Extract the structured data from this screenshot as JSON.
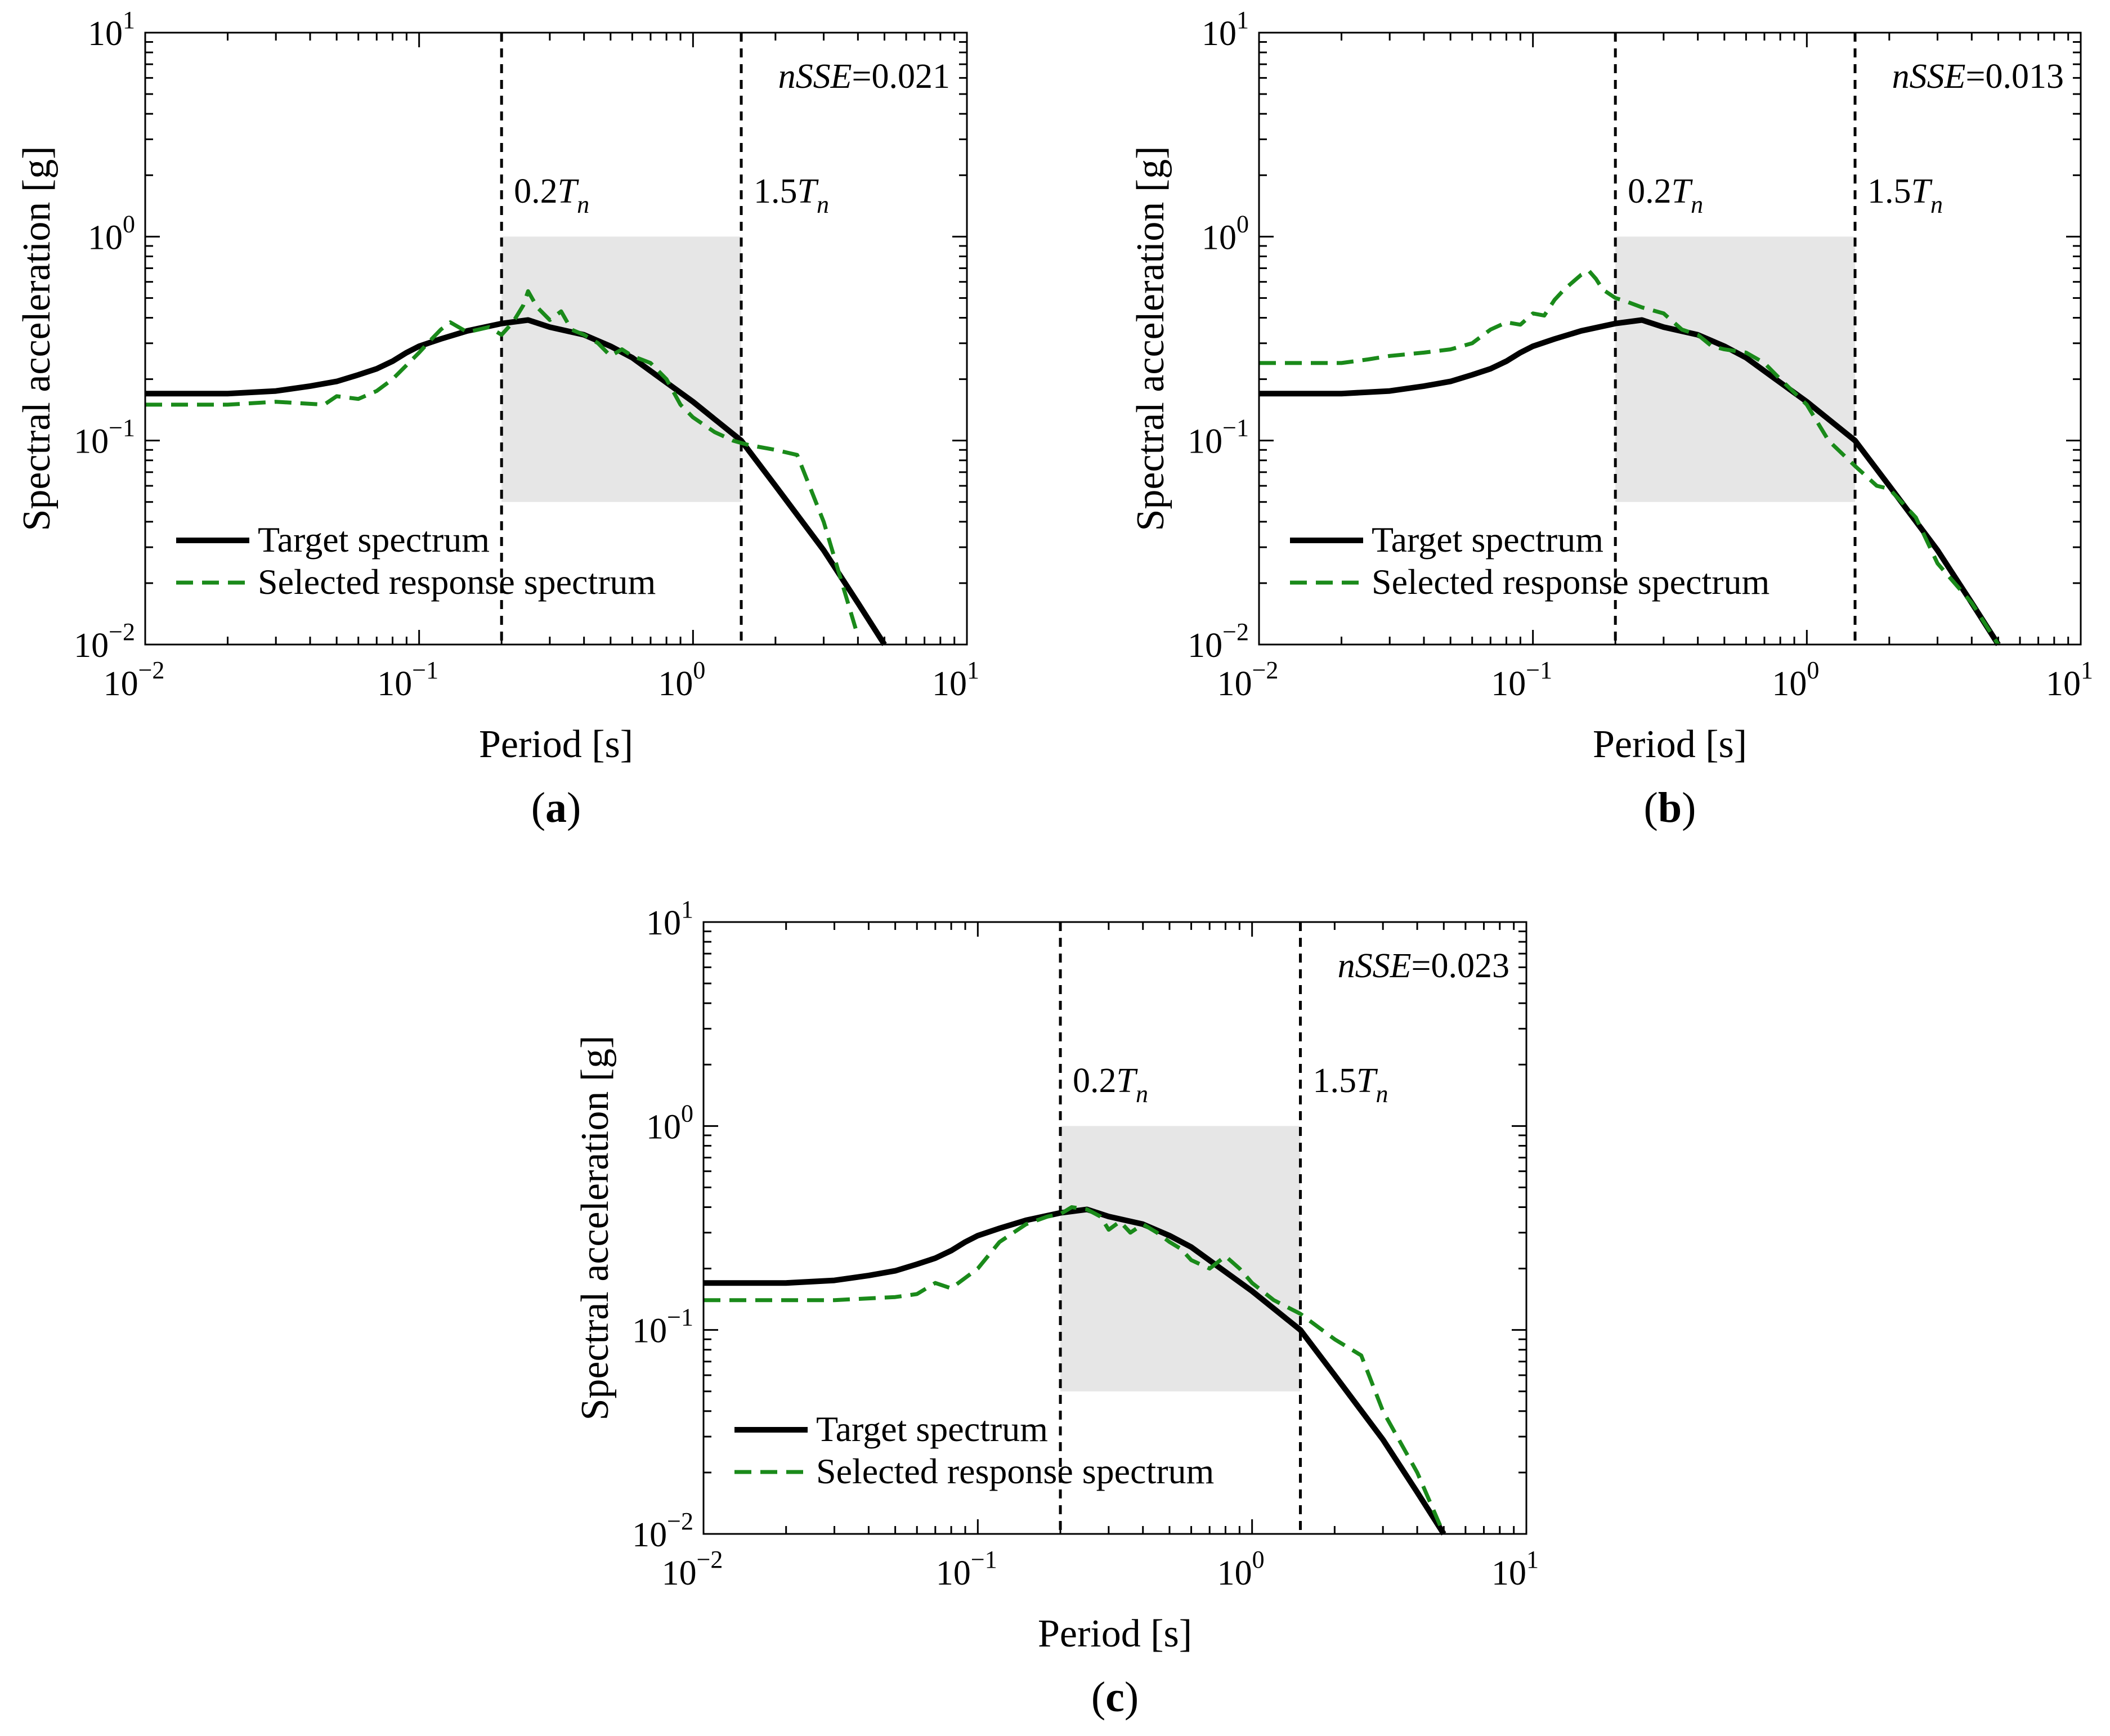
{
  "figure": {
    "colors": {
      "target": "#000000",
      "selected": "#1a8a1a",
      "band": "#e6e6e6",
      "frame": "#000000"
    }
  },
  "chart_data": [
    {
      "type": "line",
      "panel": "a",
      "caption_prefix": "(",
      "caption_letter": "a",
      "caption_suffix": ")",
      "xlabel": "Period [s]",
      "ylabel": "Spectral acceleration [g]",
      "xscale": "log",
      "yscale": "log",
      "xlim": [
        0.01,
        10
      ],
      "ylim": [
        0.01,
        10
      ],
      "x_ticks": [
        {
          "base": "10",
          "exp": "−2"
        },
        {
          "base": "10",
          "exp": "−1"
        },
        {
          "base": "10",
          "exp": "0"
        },
        {
          "base": "10",
          "exp": "1"
        }
      ],
      "y_ticks": [
        {
          "base": "10",
          "exp": "−2"
        },
        {
          "base": "10",
          "exp": "−1"
        },
        {
          "base": "10",
          "exp": "0"
        },
        {
          "base": "10",
          "exp": "1"
        }
      ],
      "metric": {
        "name": "nSSE",
        "eq": "=",
        "value": "0.021"
      },
      "vlines": [
        {
          "x": 0.2,
          "label_pre": "0.2",
          "label_T": "T",
          "label_sub": "n"
        },
        {
          "x": 1.5,
          "label_pre": "1.5",
          "label_T": "T",
          "label_sub": "n"
        }
      ],
      "band": {
        "x": [
          0.2,
          1.5
        ],
        "y": [
          0.05,
          1.0
        ]
      },
      "legend": [
        "Target spectrum",
        "Selected response spectrum"
      ],
      "series": [
        {
          "name": "Target spectrum",
          "x": [
            0.01,
            0.02,
            0.03,
            0.04,
            0.05,
            0.06,
            0.07,
            0.08,
            0.09,
            0.1,
            0.12,
            0.15,
            0.2,
            0.25,
            0.3,
            0.4,
            0.5,
            0.6,
            0.75,
            1.0,
            1.5,
            2.0,
            3.0,
            4.0,
            5.0
          ],
          "y": [
            0.17,
            0.17,
            0.175,
            0.185,
            0.195,
            0.21,
            0.225,
            0.245,
            0.27,
            0.29,
            0.315,
            0.345,
            0.375,
            0.39,
            0.36,
            0.33,
            0.29,
            0.255,
            0.205,
            0.155,
            0.1,
            0.06,
            0.029,
            0.016,
            0.01
          ]
        },
        {
          "name": "Selected response spectrum",
          "x": [
            0.01,
            0.02,
            0.03,
            0.045,
            0.05,
            0.06,
            0.07,
            0.08,
            0.1,
            0.11,
            0.12,
            0.13,
            0.15,
            0.18,
            0.2,
            0.22,
            0.24,
            0.25,
            0.27,
            0.3,
            0.33,
            0.36,
            0.4,
            0.45,
            0.5,
            0.55,
            0.6,
            0.7,
            0.8,
            0.9,
            1.0,
            1.2,
            1.4,
            1.6,
            2.0,
            2.4,
            3.0,
            3.5,
            4.0
          ],
          "y": [
            0.15,
            0.15,
            0.155,
            0.15,
            0.165,
            0.16,
            0.175,
            0.2,
            0.27,
            0.31,
            0.35,
            0.38,
            0.34,
            0.36,
            0.33,
            0.38,
            0.46,
            0.54,
            0.45,
            0.39,
            0.43,
            0.35,
            0.33,
            0.3,
            0.26,
            0.28,
            0.26,
            0.24,
            0.2,
            0.15,
            0.13,
            0.11,
            0.1,
            0.095,
            0.09,
            0.085,
            0.04,
            0.02,
            0.011
          ]
        }
      ]
    },
    {
      "type": "line",
      "panel": "b",
      "caption_prefix": "(",
      "caption_letter": "b",
      "caption_suffix": ")",
      "xlabel": "Period [s]",
      "ylabel": "Spectral acceleration [g]",
      "xscale": "log",
      "yscale": "log",
      "xlim": [
        0.01,
        10
      ],
      "ylim": [
        0.01,
        10
      ],
      "x_ticks": [
        {
          "base": "10",
          "exp": "−2"
        },
        {
          "base": "10",
          "exp": "−1"
        },
        {
          "base": "10",
          "exp": "0"
        },
        {
          "base": "10",
          "exp": "1"
        }
      ],
      "y_ticks": [
        {
          "base": "10",
          "exp": "−2"
        },
        {
          "base": "10",
          "exp": "−1"
        },
        {
          "base": "10",
          "exp": "0"
        },
        {
          "base": "10",
          "exp": "1"
        }
      ],
      "metric": {
        "name": "nSSE",
        "eq": "=",
        "value": "0.013"
      },
      "vlines": [
        {
          "x": 0.2,
          "label_pre": "0.2",
          "label_T": "T",
          "label_sub": "n"
        },
        {
          "x": 1.5,
          "label_pre": "1.5",
          "label_T": "T",
          "label_sub": "n"
        }
      ],
      "band": {
        "x": [
          0.2,
          1.5
        ],
        "y": [
          0.05,
          1.0
        ]
      },
      "legend": [
        "Target spectrum",
        "Selected response spectrum"
      ],
      "series": [
        {
          "name": "Target spectrum",
          "x": [
            0.01,
            0.02,
            0.03,
            0.04,
            0.05,
            0.06,
            0.07,
            0.08,
            0.09,
            0.1,
            0.12,
            0.15,
            0.2,
            0.25,
            0.3,
            0.4,
            0.5,
            0.6,
            0.75,
            1.0,
            1.5,
            2.0,
            3.0,
            4.0,
            5.0
          ],
          "y": [
            0.17,
            0.17,
            0.175,
            0.185,
            0.195,
            0.21,
            0.225,
            0.245,
            0.27,
            0.29,
            0.315,
            0.345,
            0.375,
            0.39,
            0.36,
            0.33,
            0.29,
            0.255,
            0.205,
            0.155,
            0.1,
            0.06,
            0.029,
            0.016,
            0.01
          ]
        },
        {
          "name": "Selected response spectrum",
          "x": [
            0.01,
            0.02,
            0.025,
            0.03,
            0.04,
            0.05,
            0.06,
            0.07,
            0.08,
            0.09,
            0.1,
            0.11,
            0.12,
            0.13,
            0.14,
            0.15,
            0.16,
            0.17,
            0.18,
            0.2,
            0.22,
            0.25,
            0.3,
            0.35,
            0.4,
            0.45,
            0.5,
            0.6,
            0.7,
            0.8,
            1.0,
            1.2,
            1.5,
            1.8,
            2.0,
            2.5,
            3.0,
            4.0,
            5.0
          ],
          "y": [
            0.24,
            0.24,
            0.25,
            0.26,
            0.27,
            0.28,
            0.3,
            0.35,
            0.38,
            0.37,
            0.42,
            0.41,
            0.49,
            0.55,
            0.6,
            0.65,
            0.68,
            0.62,
            0.55,
            0.5,
            0.48,
            0.45,
            0.42,
            0.35,
            0.33,
            0.29,
            0.28,
            0.27,
            0.24,
            0.2,
            0.15,
            0.1,
            0.075,
            0.06,
            0.058,
            0.042,
            0.025,
            0.016,
            0.01
          ]
        }
      ]
    },
    {
      "type": "line",
      "panel": "c",
      "caption_prefix": "(",
      "caption_letter": "c",
      "caption_suffix": ")",
      "xlabel": "Period [s]",
      "ylabel": "Spectral acceleration [g]",
      "xscale": "log",
      "yscale": "log",
      "xlim": [
        0.01,
        10
      ],
      "ylim": [
        0.01,
        10
      ],
      "x_ticks": [
        {
          "base": "10",
          "exp": "−2"
        },
        {
          "base": "10",
          "exp": "−1"
        },
        {
          "base": "10",
          "exp": "0"
        },
        {
          "base": "10",
          "exp": "1"
        }
      ],
      "y_ticks": [
        {
          "base": "10",
          "exp": "−2"
        },
        {
          "base": "10",
          "exp": "−1"
        },
        {
          "base": "10",
          "exp": "0"
        },
        {
          "base": "10",
          "exp": "1"
        }
      ],
      "metric": {
        "name": "nSSE",
        "eq": "=",
        "value": "0.023"
      },
      "vlines": [
        {
          "x": 0.2,
          "label_pre": "0.2",
          "label_T": "T",
          "label_sub": "n"
        },
        {
          "x": 1.5,
          "label_pre": "1.5",
          "label_T": "T",
          "label_sub": "n"
        }
      ],
      "band": {
        "x": [
          0.2,
          1.5
        ],
        "y": [
          0.05,
          1.0
        ]
      },
      "legend": [
        "Target spectrum",
        "Selected response spectrum"
      ],
      "series": [
        {
          "name": "Target spectrum",
          "x": [
            0.01,
            0.02,
            0.03,
            0.04,
            0.05,
            0.06,
            0.07,
            0.08,
            0.09,
            0.1,
            0.12,
            0.15,
            0.2,
            0.25,
            0.3,
            0.4,
            0.5,
            0.6,
            0.75,
            1.0,
            1.5,
            2.0,
            3.0,
            4.0,
            5.0
          ],
          "y": [
            0.17,
            0.17,
            0.175,
            0.185,
            0.195,
            0.21,
            0.225,
            0.245,
            0.27,
            0.29,
            0.315,
            0.345,
            0.375,
            0.39,
            0.36,
            0.33,
            0.29,
            0.255,
            0.205,
            0.155,
            0.1,
            0.06,
            0.029,
            0.016,
            0.01
          ]
        },
        {
          "name": "Selected response spectrum",
          "x": [
            0.01,
            0.02,
            0.03,
            0.05,
            0.06,
            0.07,
            0.08,
            0.09,
            0.1,
            0.12,
            0.15,
            0.18,
            0.2,
            0.22,
            0.25,
            0.28,
            0.3,
            0.33,
            0.36,
            0.4,
            0.45,
            0.5,
            0.55,
            0.6,
            0.7,
            0.8,
            0.9,
            1.0,
            1.2,
            1.5,
            2.0,
            2.5,
            3.0,
            4.0,
            5.0
          ],
          "y": [
            0.14,
            0.14,
            0.14,
            0.145,
            0.15,
            0.17,
            0.16,
            0.18,
            0.2,
            0.27,
            0.33,
            0.36,
            0.37,
            0.4,
            0.39,
            0.36,
            0.31,
            0.34,
            0.3,
            0.33,
            0.3,
            0.27,
            0.25,
            0.22,
            0.2,
            0.23,
            0.2,
            0.17,
            0.14,
            0.12,
            0.09,
            0.075,
            0.04,
            0.02,
            0.01
          ]
        }
      ]
    }
  ]
}
